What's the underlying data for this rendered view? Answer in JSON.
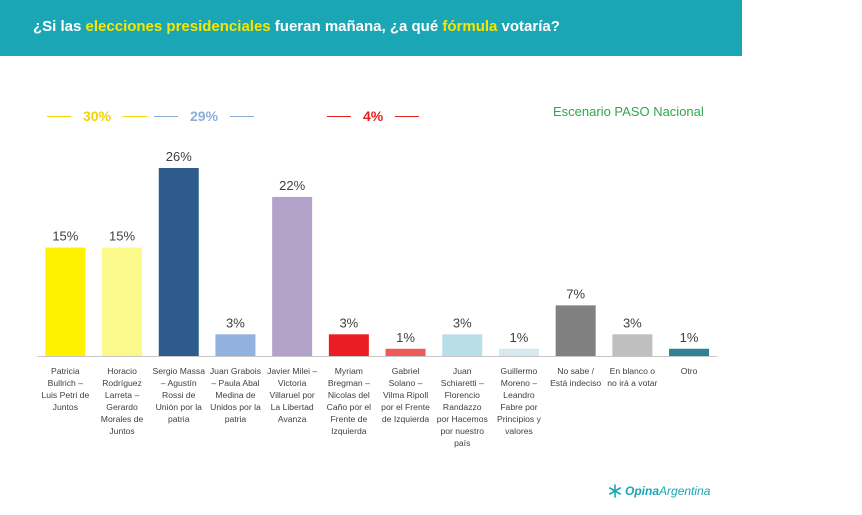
{
  "header": {
    "title_parts": [
      {
        "text": "¿Si las ",
        "hl": false
      },
      {
        "text": "elecciones presidenciales",
        "hl": true
      },
      {
        "text": " fueran mañana, ¿a qué ",
        "hl": false
      },
      {
        "text": "fórmula",
        "hl": true
      },
      {
        "text": " votaría?",
        "hl": false
      }
    ]
  },
  "groups": [
    {
      "value": "30%",
      "color": "#f2d400"
    },
    {
      "value": "29%",
      "color": "#8eaed8"
    },
    {
      "value": "4%",
      "color": "#e32222"
    }
  ],
  "scenario_label": "Escenario PASO Nacional",
  "brand": {
    "part1": "Opina",
    "part2": "Argentina",
    "icon": "asterisk-logo-icon"
  },
  "colors": {
    "header": "#1aa6b5",
    "highlight": "#f6e700"
  },
  "chart_data": {
    "type": "bar",
    "categories": [
      [
        "Patricia",
        "Bullrich –",
        "Luis Petri de",
        "Juntos"
      ],
      [
        "Horacio",
        "Rodríguez",
        "Larreta –",
        "Gerardo",
        "Morales de",
        "Juntos"
      ],
      [
        "Sergio Massa",
        "– Agustín",
        "Rossi de",
        "Unión por la",
        "patria"
      ],
      [
        "Juan Grabois",
        "– Paula Abal",
        "Medina de",
        "Unidos por la",
        "patria"
      ],
      [
        "Javier Milei –",
        "Victoria",
        "Villaruel por",
        "La Libertad",
        "Avanza"
      ],
      [
        "Myriam",
        "Bregman –",
        "Nicolas del",
        "Caño por el",
        "Frente de",
        "Izquierda"
      ],
      [
        "Gabriel",
        "Solano –",
        "Vilma Ripoll",
        "por el Frente",
        "de Izquierda"
      ],
      [
        "Juan",
        "Schiaretti –",
        "Florencio",
        "Randazzo",
        "por Hacemos",
        "por nuestro",
        "país"
      ],
      [
        "Guillermo",
        "Moreno –",
        "Leandro",
        "Fabre por",
        "Principios y",
        "valores"
      ],
      [
        "No sabe /",
        "Está indeciso"
      ],
      [
        "En blanco o",
        "no irá a votar"
      ],
      [
        "Otro"
      ]
    ],
    "values": [
      15,
      15,
      26,
      3,
      22,
      3,
      1,
      3,
      1,
      7,
      3,
      1
    ],
    "labels": [
      "15%",
      "15%",
      "26%",
      "3%",
      "22%",
      "3%",
      "1%",
      "3%",
      "1%",
      "7%",
      "3%",
      "1%"
    ],
    "colors": [
      "#fff200",
      "#fbf98a",
      "#2f5a8c",
      "#91b2de",
      "#b3a2ca",
      "#ec1c24",
      "#ec5a5a",
      "#b8dfe9",
      "#d6e9ee",
      "#808080",
      "#bfbfbf",
      "#2e8293"
    ],
    "ylim": [
      0,
      26
    ],
    "grid": false
  }
}
